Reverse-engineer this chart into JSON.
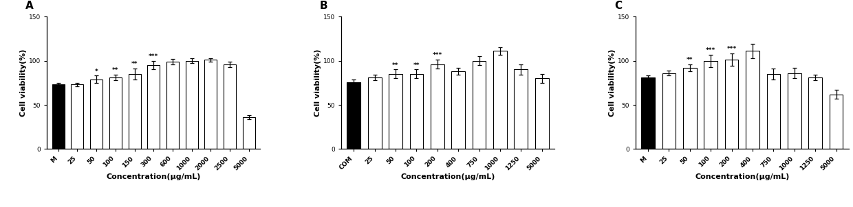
{
  "panels": [
    {
      "label": "A",
      "categories": [
        "M",
        "25",
        "50",
        "100",
        "150",
        "300",
        "600",
        "1000",
        "2000",
        "2500",
        "5000"
      ],
      "values": [
        73,
        73,
        79,
        81,
        85,
        95,
        99,
        100,
        101,
        96,
        36
      ],
      "errors": [
        2,
        2,
        4,
        3,
        6,
        5,
        3,
        3,
        2,
        3,
        2
      ],
      "colors": [
        "#000000",
        "#ffffff",
        "#ffffff",
        "#ffffff",
        "#ffffff",
        "#ffffff",
        "#ffffff",
        "#ffffff",
        "#ffffff",
        "#ffffff",
        "#ffffff"
      ],
      "significance": [
        "",
        "",
        "*",
        "**",
        "**",
        "***",
        "",
        "",
        "",
        "",
        ""
      ],
      "xlabel": "Concentration(μg/mL)",
      "ylabel": "Cell viability(%)"
    },
    {
      "label": "B",
      "categories": [
        "COM",
        "25",
        "50",
        "100",
        "200",
        "400",
        "750",
        "1000",
        "1250",
        "5000"
      ],
      "values": [
        76,
        81,
        85,
        85,
        96,
        88,
        100,
        111,
        90,
        80
      ],
      "errors": [
        3,
        3,
        5,
        5,
        5,
        4,
        5,
        4,
        6,
        5
      ],
      "colors": [
        "#000000",
        "#ffffff",
        "#ffffff",
        "#ffffff",
        "#ffffff",
        "#ffffff",
        "#ffffff",
        "#ffffff",
        "#ffffff",
        "#ffffff"
      ],
      "significance": [
        "",
        "",
        "**",
        "**",
        "***",
        "",
        "",
        "",
        "",
        ""
      ],
      "xlabel": "Concentration(μg/mL)",
      "ylabel": "Cell viability(%)"
    },
    {
      "label": "C",
      "categories": [
        "M",
        "25",
        "50",
        "100",
        "200",
        "400",
        "750",
        "1000",
        "1250",
        "5000"
      ],
      "values": [
        81,
        86,
        92,
        100,
        101,
        111,
        85,
        86,
        81,
        62
      ],
      "errors": [
        2,
        3,
        4,
        7,
        7,
        8,
        6,
        6,
        3,
        5
      ],
      "colors": [
        "#000000",
        "#ffffff",
        "#ffffff",
        "#ffffff",
        "#ffffff",
        "#ffffff",
        "#ffffff",
        "#ffffff",
        "#ffffff",
        "#ffffff"
      ],
      "significance": [
        "",
        "",
        "**",
        "***",
        "***",
        "",
        "",
        "",
        "",
        ""
      ],
      "xlabel": "Concentration(μg/mL)",
      "ylabel": "Cell viability(%)"
    }
  ],
  "ylim": [
    0,
    150
  ],
  "yticks": [
    0,
    50,
    100,
    150
  ],
  "bar_edgecolor": "#000000",
  "bar_width": 0.65,
  "sig_fontsize": 6.5,
  "label_fontsize": 8,
  "tick_fontsize": 6.5,
  "panel_label_fontsize": 11,
  "figure_width": 12.4,
  "figure_height": 3.02,
  "dpi": 100
}
